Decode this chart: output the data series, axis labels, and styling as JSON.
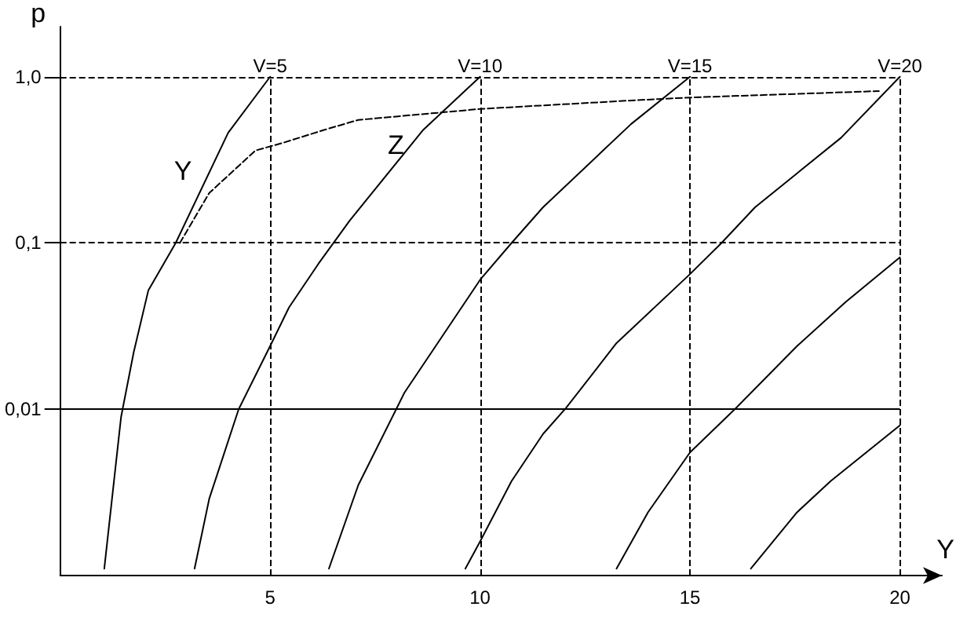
{
  "chart_data": {
    "type": "line",
    "xlabel": "Y",
    "ylabel": "p",
    "log": "y",
    "marker": "none",
    "grid": false,
    "legend": false,
    "xlim": [
      0,
      21
    ],
    "xticks": [
      5,
      10,
      15,
      20
    ],
    "ylim": [
      0.001,
      2
    ],
    "yticks": [
      {
        "value": 0.01,
        "label": "0,01"
      },
      {
        "value": 0.1,
        "label": "0,1"
      },
      {
        "value": 1,
        "label": "1,0"
      }
    ],
    "series": [
      {
        "name": "Y",
        "color": "#000000",
        "line_style": "solid",
        "x": [
          1.05,
          1.45,
          1.75,
          2.1,
          2.75,
          4,
          5
        ],
        "values": [
          0.0011,
          0.009,
          0.022,
          0.052,
          0.1,
          0.46,
          1
        ]
      },
      {
        "name": "Z",
        "color": "#000000",
        "line_style": "dashed",
        "x": [
          2.85,
          3.55,
          4.65,
          5.3,
          6.3,
          7.1,
          10,
          13.6,
          15,
          19.5
        ],
        "values": [
          0.1,
          0.2,
          0.36,
          0.4,
          0.48,
          0.55,
          0.64,
          0.72,
          0.75,
          0.82
        ]
      },
      {
        "color": "#000000",
        "line_style": "solid",
        "x": [
          3.2,
          3.55,
          4.25,
          5,
          5.45,
          6.15,
          6.9,
          8.65,
          10
        ],
        "values": [
          0.0011,
          0.0029,
          0.01,
          0.024,
          0.041,
          0.075,
          0.137,
          0.48,
          1
        ]
      },
      {
        "color": "#000000",
        "line_style": "solid",
        "x": [
          6.4,
          7.1,
          8.2,
          10,
          10.75,
          11.5,
          13.6,
          15
        ],
        "values": [
          0.0011,
          0.0035,
          0.0126,
          0.06,
          0.1,
          0.164,
          0.52,
          1
        ]
      },
      {
        "color": "#000000",
        "line_style": "solid",
        "x": [
          9.65,
          10,
          10.75,
          11.5,
          12.05,
          13.25,
          15,
          15.75,
          16.55,
          18.6,
          20
        ],
        "values": [
          0.0011,
          0.0016,
          0.0037,
          0.0071,
          0.0102,
          0.025,
          0.065,
          0.1,
          0.164,
          0.43,
          1
        ]
      },
      {
        "color": "#000000",
        "line_style": "solid",
        "x": [
          13.25,
          14,
          15,
          16.1,
          17.55,
          18.7,
          20
        ],
        "values": [
          0.0011,
          0.0024,
          0.0055,
          0.0102,
          0.024,
          0.044,
          0.082
        ]
      },
      {
        "color": "#000000",
        "line_style": "solid",
        "x": [
          16.45,
          17.55,
          18.35,
          20
        ],
        "values": [
          0.0011,
          0.0024,
          0.0037,
          0.008
        ]
      }
    ],
    "ref_lines": [
      {
        "axis": "x",
        "value": 5,
        "line_style": "dashed",
        "color": "#000000"
      },
      {
        "axis": "x",
        "value": 10,
        "line_style": "dashed",
        "color": "#000000"
      },
      {
        "axis": "x",
        "value": 15,
        "line_style": "dashed",
        "color": "#000000"
      },
      {
        "axis": "x",
        "value": 20,
        "line_style": "dashed",
        "color": "#000000"
      },
      {
        "axis": "y",
        "value": 1,
        "line_style": "dashed",
        "color": "#000000"
      },
      {
        "axis": "y",
        "value": 0.1,
        "line_style": "dashed",
        "color": "#000000"
      },
      {
        "axis": "y",
        "value": 0.01,
        "line_style": "solid",
        "color": "#000000"
      }
    ],
    "annotations": [
      {
        "text": "V=5",
        "x": 5,
        "y": 1
      },
      {
        "text": "V=10",
        "x": 10,
        "y": 1
      },
      {
        "text": "V=15",
        "x": 15,
        "y": 1
      },
      {
        "text": "V=20",
        "x": 20,
        "y": 1
      }
    ]
  }
}
